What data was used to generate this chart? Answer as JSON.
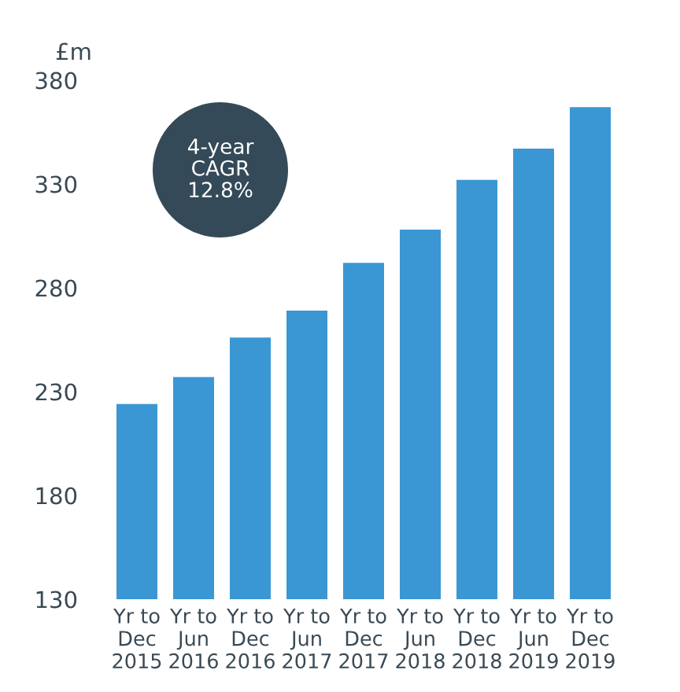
{
  "chart_data": {
    "type": "bar",
    "ylabel": "£m",
    "categories": [
      "Yr to\nDec\n2015",
      "Yr to\nJun\n2016",
      "Yr to\nDec\n2016",
      "Yr to\nJun\n2017",
      "Yr to\nDec\n2017",
      "Yr to\nJun\n2018",
      "Yr to\nDec\n2018",
      "Yr to\nJun\n2019",
      "Yr to\nDec\n2019"
    ],
    "values": [
      224,
      237,
      256,
      269,
      292,
      308,
      332,
      347,
      367
    ],
    "color": "#3a97d3",
    "ylim": [
      130,
      380
    ],
    "yticks": [
      130,
      180,
      230,
      280,
      330,
      380
    ],
    "grid": false,
    "legend": false,
    "annotations": [
      "4-year\nCAGR\n12.8%"
    ]
  }
}
